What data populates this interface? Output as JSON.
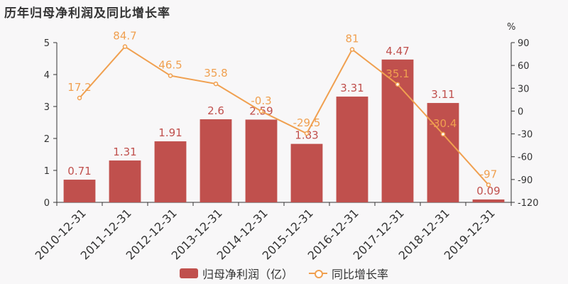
{
  "title": "历年归母净利润及同比增长率",
  "chart_data": {
    "type": "bar",
    "categories": [
      "2010-12-31",
      "2011-12-31",
      "2012-12-31",
      "2013-12-31",
      "2014-12-31",
      "2015-12-31",
      "2016-12-31",
      "2017-12-31",
      "2018-12-31",
      "2019-12-31"
    ],
    "series": [
      {
        "name": "归母净利润（亿）",
        "type": "bar",
        "axis": "left",
        "values": [
          0.71,
          1.31,
          1.91,
          2.6,
          2.59,
          1.83,
          3.31,
          4.47,
          3.11,
          0.09
        ],
        "labels": [
          "0.71",
          "1.31",
          "1.91",
          "2.6",
          "2.59",
          "1.83",
          "3.31",
          "4.47",
          "3.11",
          "0.09"
        ],
        "color": "#c0504d"
      },
      {
        "name": "同比增长率",
        "type": "line",
        "axis": "right",
        "values": [
          17.2,
          84.7,
          46.5,
          35.8,
          -0.3,
          -29.5,
          81,
          35.1,
          -30.4,
          -97
        ],
        "labels": [
          "17.2",
          "84.7",
          "46.5",
          "35.8",
          "-0.3",
          "-29.5",
          "81",
          "35.1",
          "-30.4",
          "-97"
        ],
        "color": "#f0a050"
      }
    ],
    "y_left": {
      "ylim": [
        0,
        5
      ],
      "ticks": [
        "0",
        "1",
        "2",
        "3",
        "4",
        "5"
      ]
    },
    "y_right": {
      "label": "%",
      "ylim": [
        -120,
        90
      ],
      "ticks": [
        "-120",
        "-90",
        "-60",
        "-30",
        "0",
        "30",
        "60",
        "90"
      ]
    },
    "grid": false,
    "legend_position": "bottom"
  },
  "legend": {
    "bar_label": "归母净利润（亿）",
    "line_label": "同比增长率"
  }
}
